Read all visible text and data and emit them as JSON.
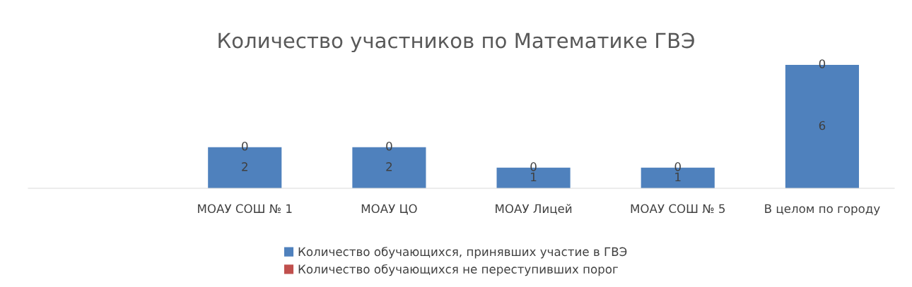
{
  "chart_data": {
    "type": "bar",
    "title": "Количество участников по Математике ГВЭ",
    "categories": [
      null,
      "МОАУ СОШ № 1",
      "МОАУ ЦО",
      "МОАУ Лицей",
      "МОАУ СОШ № 5",
      "В целом по городу"
    ],
    "stacked": true,
    "data_labels": true,
    "legend": "bottom",
    "grid": false,
    "tick_labels": "x",
    "series": [
      {
        "name": "Количество обучающихся, принявших участие в ГВЭ",
        "color": "#4f81bd",
        "values": [
          null,
          2,
          2,
          1,
          1,
          6
        ]
      },
      {
        "name": "Количество обучающихся не переступивших порог",
        "color": "#c0504d",
        "values": [
          null,
          0,
          0,
          0,
          0,
          0
        ]
      }
    ]
  }
}
